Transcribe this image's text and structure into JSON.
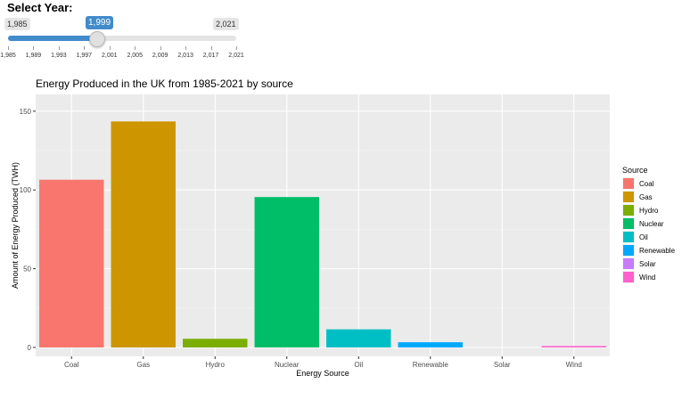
{
  "slider": {
    "label": "Select Year:",
    "min_label": "1,985",
    "max_label": "2,021",
    "current_label": "1,999",
    "min": 1985,
    "max": 2021,
    "value": 1999,
    "tick_labels": [
      "1,985",
      "1,989",
      "1,993",
      "1,997",
      "2,001",
      "2,005",
      "2,009",
      "2,013",
      "2,017",
      "2,021"
    ]
  },
  "chart_data": {
    "type": "bar",
    "title": "Energy Produced in the UK from 1985-2021 by source",
    "xlabel": "Energy Source",
    "ylabel": "Amount of Energy Produced (TWH)",
    "categories": [
      "Coal",
      "Gas",
      "Hydro",
      "Nuclear",
      "Oil",
      "Renewable",
      "Solar",
      "Wind"
    ],
    "values": [
      106.5,
      143.5,
      5.5,
      95.5,
      11.5,
      3.3,
      0,
      0.9
    ],
    "colors": [
      "#F8766D",
      "#CD9600",
      "#7CAE00",
      "#00BE67",
      "#00BFC4",
      "#00A9FF",
      "#C77CFF",
      "#FF61CC"
    ],
    "ylim": [
      0,
      155
    ],
    "yticks": [
      0,
      50,
      100,
      150
    ],
    "grid": true,
    "legend": {
      "title": "Source",
      "position": "right",
      "entries": [
        "Coal",
        "Gas",
        "Hydro",
        "Nuclear",
        "Oil",
        "Renewable",
        "Solar",
        "Wind"
      ]
    }
  }
}
